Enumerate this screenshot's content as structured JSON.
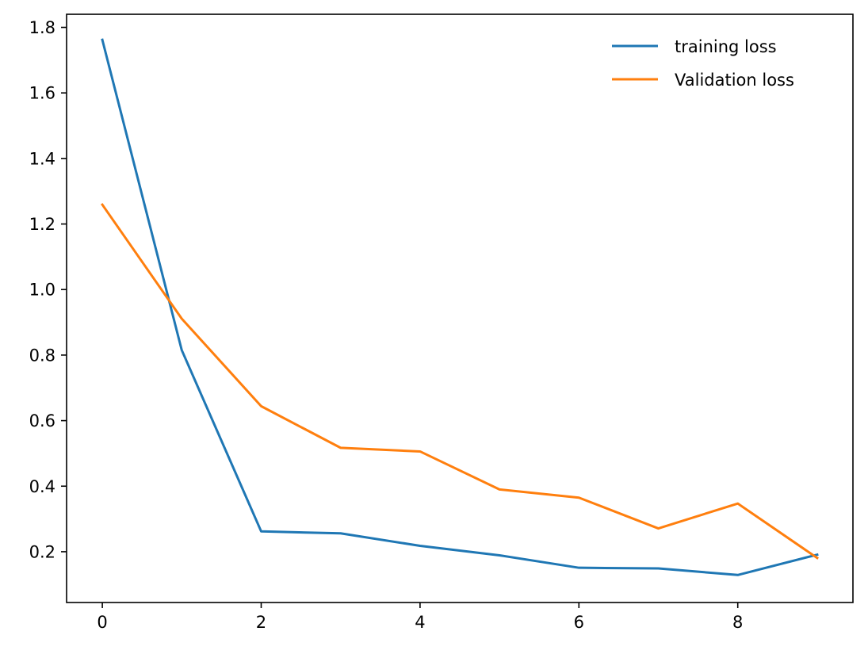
{
  "chart_data": {
    "type": "line",
    "title": "",
    "xlabel": "",
    "ylabel": "",
    "x": [
      0,
      1,
      2,
      3,
      4,
      5,
      6,
      7,
      8,
      9
    ],
    "xlim": [
      -0.45,
      9.45
    ],
    "ylim": [
      0.045,
      1.84
    ],
    "xticks": [
      0,
      2,
      4,
      6,
      8
    ],
    "xtick_labels": [
      "0",
      "2",
      "4",
      "6",
      "8"
    ],
    "yticks": [
      0.2,
      0.4,
      0.6,
      0.8,
      1.0,
      1.2,
      1.4,
      1.6,
      1.8
    ],
    "ytick_labels": [
      "0.2",
      "0.4",
      "0.6",
      "0.8",
      "1.0",
      "1.2",
      "1.4",
      "1.6",
      "1.8"
    ],
    "grid": false,
    "legend_position": "top-right",
    "series": [
      {
        "name": "training loss",
        "color": "#1f77b4",
        "values": [
          1.762,
          0.815,
          0.262,
          0.256,
          0.218,
          0.189,
          0.151,
          0.149,
          0.129,
          0.191
        ]
      },
      {
        "name": "Validation loss",
        "color": "#ff7f0e",
        "values": [
          1.259,
          0.911,
          0.644,
          0.517,
          0.506,
          0.39,
          0.365,
          0.271,
          0.347,
          0.181
        ]
      }
    ]
  }
}
